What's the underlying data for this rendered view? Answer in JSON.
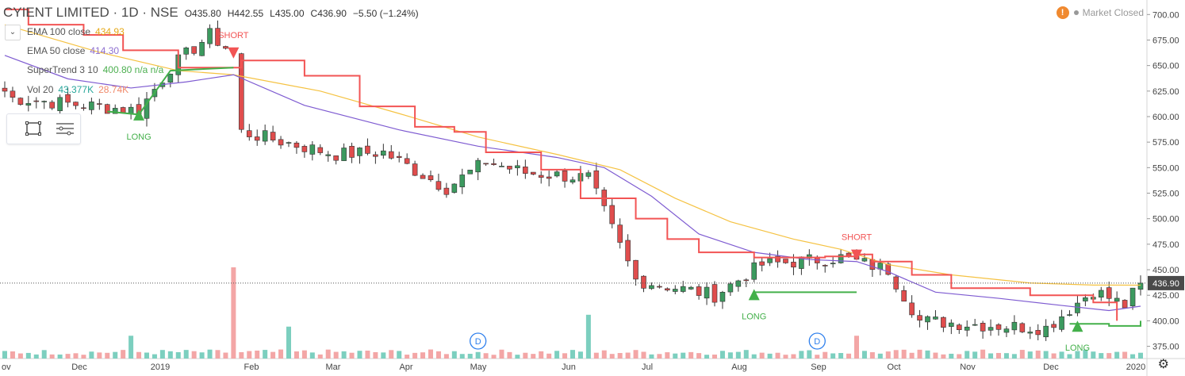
{
  "header": {
    "title": "CYIENT LIMITED · 1D · NSE",
    "open": "O435.80",
    "high": "H442.55",
    "low": "L435.00",
    "close": "C436.90",
    "change": "−5.50 (−1.24%)"
  },
  "indicators": [
    {
      "name": "EMA 100 close",
      "value": "434.93",
      "color": "#e6a817"
    },
    {
      "name": "EMA 50 close",
      "value": "414.30",
      "color": "#8e6fcf"
    },
    {
      "name": "SuperTrend 3 10",
      "value": "400.80  n/a  n/a",
      "color": "#4caf50"
    },
    {
      "name": "Vol 20",
      "value": "43.377K",
      "value2": "28.74K",
      "color": "#26a69a",
      "color2": "#f08a6b"
    }
  ],
  "status": {
    "text": "Market Closed",
    "warning_icon": "!"
  },
  "colors": {
    "up": "#3c9a5f",
    "down": "#e04d4d",
    "ema100": "#f5c242",
    "ema50": "#7e5bd1",
    "supertrend_down": "#f25454",
    "supertrend_up": "#43b04a",
    "vol_up": "#7ccfbf",
    "vol_down": "#f3a6a6",
    "price_tag": "#4a4a4a"
  },
  "chart_data": {
    "type": "candlestick",
    "y_ticks": [
      375,
      400,
      425,
      450,
      475,
      500,
      525,
      550,
      575,
      600,
      625,
      650,
      675,
      700
    ],
    "ylim": [
      363,
      708
    ],
    "x_labels": [
      "ov",
      "Dec",
      "2019",
      "Feb",
      "Mar",
      "Apr",
      "May",
      "Jun",
      "Jul",
      "Aug",
      "Sep",
      "Oct",
      "Nov",
      "Dec",
      "2020"
    ],
    "last_price": "436.90",
    "segments": [
      {
        "start": 0,
        "end": 1,
        "from": 625,
        "to": 618
      },
      {
        "start": 1,
        "end": 17,
        "from": 618,
        "to": 606
      },
      {
        "start": 17,
        "end": 21,
        "from": 606,
        "to": 648
      },
      {
        "start": 21,
        "end": 26,
        "from": 648,
        "to": 680
      },
      {
        "start": 26,
        "end": 29,
        "from": 680,
        "to": 662
      },
      {
        "start": 29,
        "end": 30,
        "from": 662,
        "to": 585
      },
      {
        "start": 30,
        "end": 42,
        "from": 585,
        "to": 563
      },
      {
        "start": 42,
        "end": 48,
        "from": 563,
        "to": 565
      },
      {
        "start": 48,
        "end": 56,
        "from": 565,
        "to": 530
      },
      {
        "start": 56,
        "end": 61,
        "from": 530,
        "to": 556
      },
      {
        "start": 61,
        "end": 66,
        "from": 556,
        "to": 545
      },
      {
        "start": 66,
        "end": 74,
        "from": 545,
        "to": 540
      },
      {
        "start": 74,
        "end": 80,
        "from": 540,
        "to": 440
      },
      {
        "start": 80,
        "end": 90,
        "from": 440,
        "to": 425
      },
      {
        "start": 90,
        "end": 96,
        "from": 425,
        "to": 455
      },
      {
        "start": 96,
        "end": 106,
        "from": 455,
        "to": 462
      },
      {
        "start": 106,
        "end": 112,
        "from": 462,
        "to": 450
      },
      {
        "start": 112,
        "end": 116,
        "from": 450,
        "to": 400
      },
      {
        "start": 116,
        "end": 124,
        "from": 400,
        "to": 396
      },
      {
        "start": 124,
        "end": 132,
        "from": 396,
        "to": 393
      },
      {
        "start": 132,
        "end": 138,
        "from": 393,
        "to": 430
      },
      {
        "start": 138,
        "end": 142,
        "from": 430,
        "to": 415
      },
      {
        "start": 142,
        "end": 144,
        "from": 415,
        "to": 437
      }
    ],
    "candle_count": 145,
    "ema100": [
      [
        0,
        690
      ],
      [
        12,
        663
      ],
      [
        22,
        645
      ],
      [
        29,
        641
      ],
      [
        40,
        625
      ],
      [
        50,
        603
      ],
      [
        60,
        580
      ],
      [
        70,
        563
      ],
      [
        78,
        548
      ],
      [
        85,
        520
      ],
      [
        92,
        497
      ],
      [
        100,
        480
      ],
      [
        106,
        470
      ],
      [
        112,
        455
      ],
      [
        120,
        445
      ],
      [
        130,
        437
      ],
      [
        138,
        435
      ],
      [
        144,
        434.9
      ]
    ],
    "ema50": [
      [
        0,
        660
      ],
      [
        8,
        637
      ],
      [
        16,
        628
      ],
      [
        23,
        634
      ],
      [
        29,
        641
      ],
      [
        38,
        611
      ],
      [
        50,
        587
      ],
      [
        60,
        571
      ],
      [
        70,
        560
      ],
      [
        76,
        550
      ],
      [
        82,
        522
      ],
      [
        88,
        485
      ],
      [
        95,
        467
      ],
      [
        102,
        460
      ],
      [
        108,
        458
      ],
      [
        112,
        448
      ],
      [
        118,
        428
      ],
      [
        126,
        422
      ],
      [
        134,
        415
      ],
      [
        140,
        410
      ],
      [
        144,
        414.3
      ]
    ],
    "supertrend_down": [
      [
        0,
        705
      ],
      [
        3,
        690
      ],
      [
        10,
        680
      ],
      [
        15,
        665
      ],
      [
        22,
        648
      ],
      [
        30,
        655
      ],
      [
        38,
        640
      ],
      [
        45,
        610
      ],
      [
        52,
        590
      ],
      [
        57,
        585
      ],
      [
        61,
        565
      ],
      [
        68,
        548
      ],
      [
        73,
        520
      ],
      [
        80,
        500
      ],
      [
        84,
        480
      ],
      [
        88,
        467
      ],
      [
        95,
        462
      ],
      [
        104,
        463
      ],
      [
        108,
        465
      ],
      [
        110,
        458
      ],
      [
        115,
        445
      ],
      [
        120,
        432
      ],
      [
        130,
        425
      ],
      [
        138,
        418
      ],
      [
        141,
        400
      ]
    ],
    "supertrend_up": [
      [
        13,
        605
      ],
      [
        17,
        602
      ],
      [
        21,
        645
      ],
      [
        29,
        648
      ],
      [
        95,
        428
      ],
      [
        103,
        428
      ],
      [
        108,
        428
      ],
      [
        135,
        397
      ],
      [
        140,
        395
      ],
      [
        144,
        400
      ]
    ],
    "signals": [
      {
        "type": "LONG",
        "idx": 17,
        "price": 604
      },
      {
        "type": "SHORT",
        "idx": 29,
        "price": 660
      },
      {
        "type": "LONG",
        "idx": 95,
        "price": 428
      },
      {
        "type": "SHORT",
        "idx": 108,
        "price": 462
      },
      {
        "type": "LONG",
        "idx": 136,
        "price": 397
      }
    ],
    "volume_spikes": [
      [
        16,
        0.25
      ],
      [
        29,
        1.0
      ],
      [
        36,
        0.35
      ],
      [
        74,
        0.48
      ],
      [
        108,
        0.25
      ]
    ],
    "dividend_markers": [
      {
        "label": "D",
        "idx": 60
      },
      {
        "label": "D",
        "idx": 103
      }
    ]
  }
}
